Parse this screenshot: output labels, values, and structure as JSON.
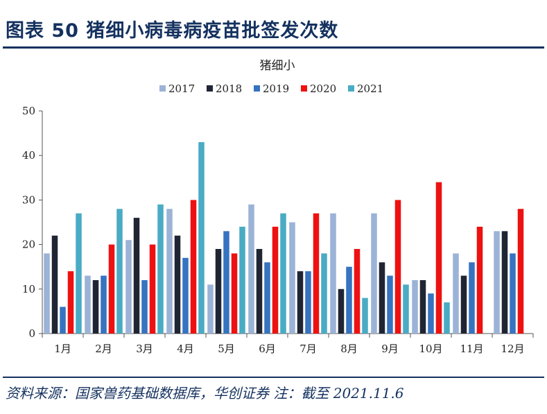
{
  "figure": {
    "title": "图表 50   猪细小病毒病疫苗批签发次数",
    "source": "资料来源：国家兽药基础数据库，华创证券 注：截至 2021.11.6"
  },
  "chart_data": {
    "type": "bar",
    "title": "猪细小",
    "xlabel": "",
    "ylabel": "",
    "ylim": [
      0,
      50
    ],
    "yticks": [
      0,
      10,
      20,
      30,
      40,
      50
    ],
    "grid": false,
    "legend_position": "top-center",
    "categories": [
      "1月",
      "2月",
      "3月",
      "4月",
      "5月",
      "6月",
      "7月",
      "8月",
      "9月",
      "10月",
      "11月",
      "12月"
    ],
    "series": [
      {
        "name": "2017",
        "color": "#9bb3d6",
        "values": [
          18,
          13,
          21,
          28,
          11,
          29,
          25,
          27,
          27,
          12,
          18,
          23
        ]
      },
      {
        "name": "2018",
        "color": "#1f2533",
        "values": [
          22,
          12,
          26,
          22,
          19,
          19,
          14,
          10,
          16,
          12,
          13,
          23
        ]
      },
      {
        "name": "2019",
        "color": "#3673c0",
        "values": [
          6,
          13,
          12,
          17,
          23,
          16,
          14,
          15,
          13,
          9,
          16,
          18
        ]
      },
      {
        "name": "2020",
        "color": "#ee1111",
        "values": [
          14,
          20,
          20,
          30,
          18,
          24,
          27,
          19,
          30,
          34,
          24,
          28
        ]
      },
      {
        "name": "2021",
        "color": "#4aabc4",
        "values": [
          27,
          28,
          29,
          43,
          24,
          27,
          18,
          8,
          11,
          7,
          null,
          null
        ]
      }
    ]
  }
}
